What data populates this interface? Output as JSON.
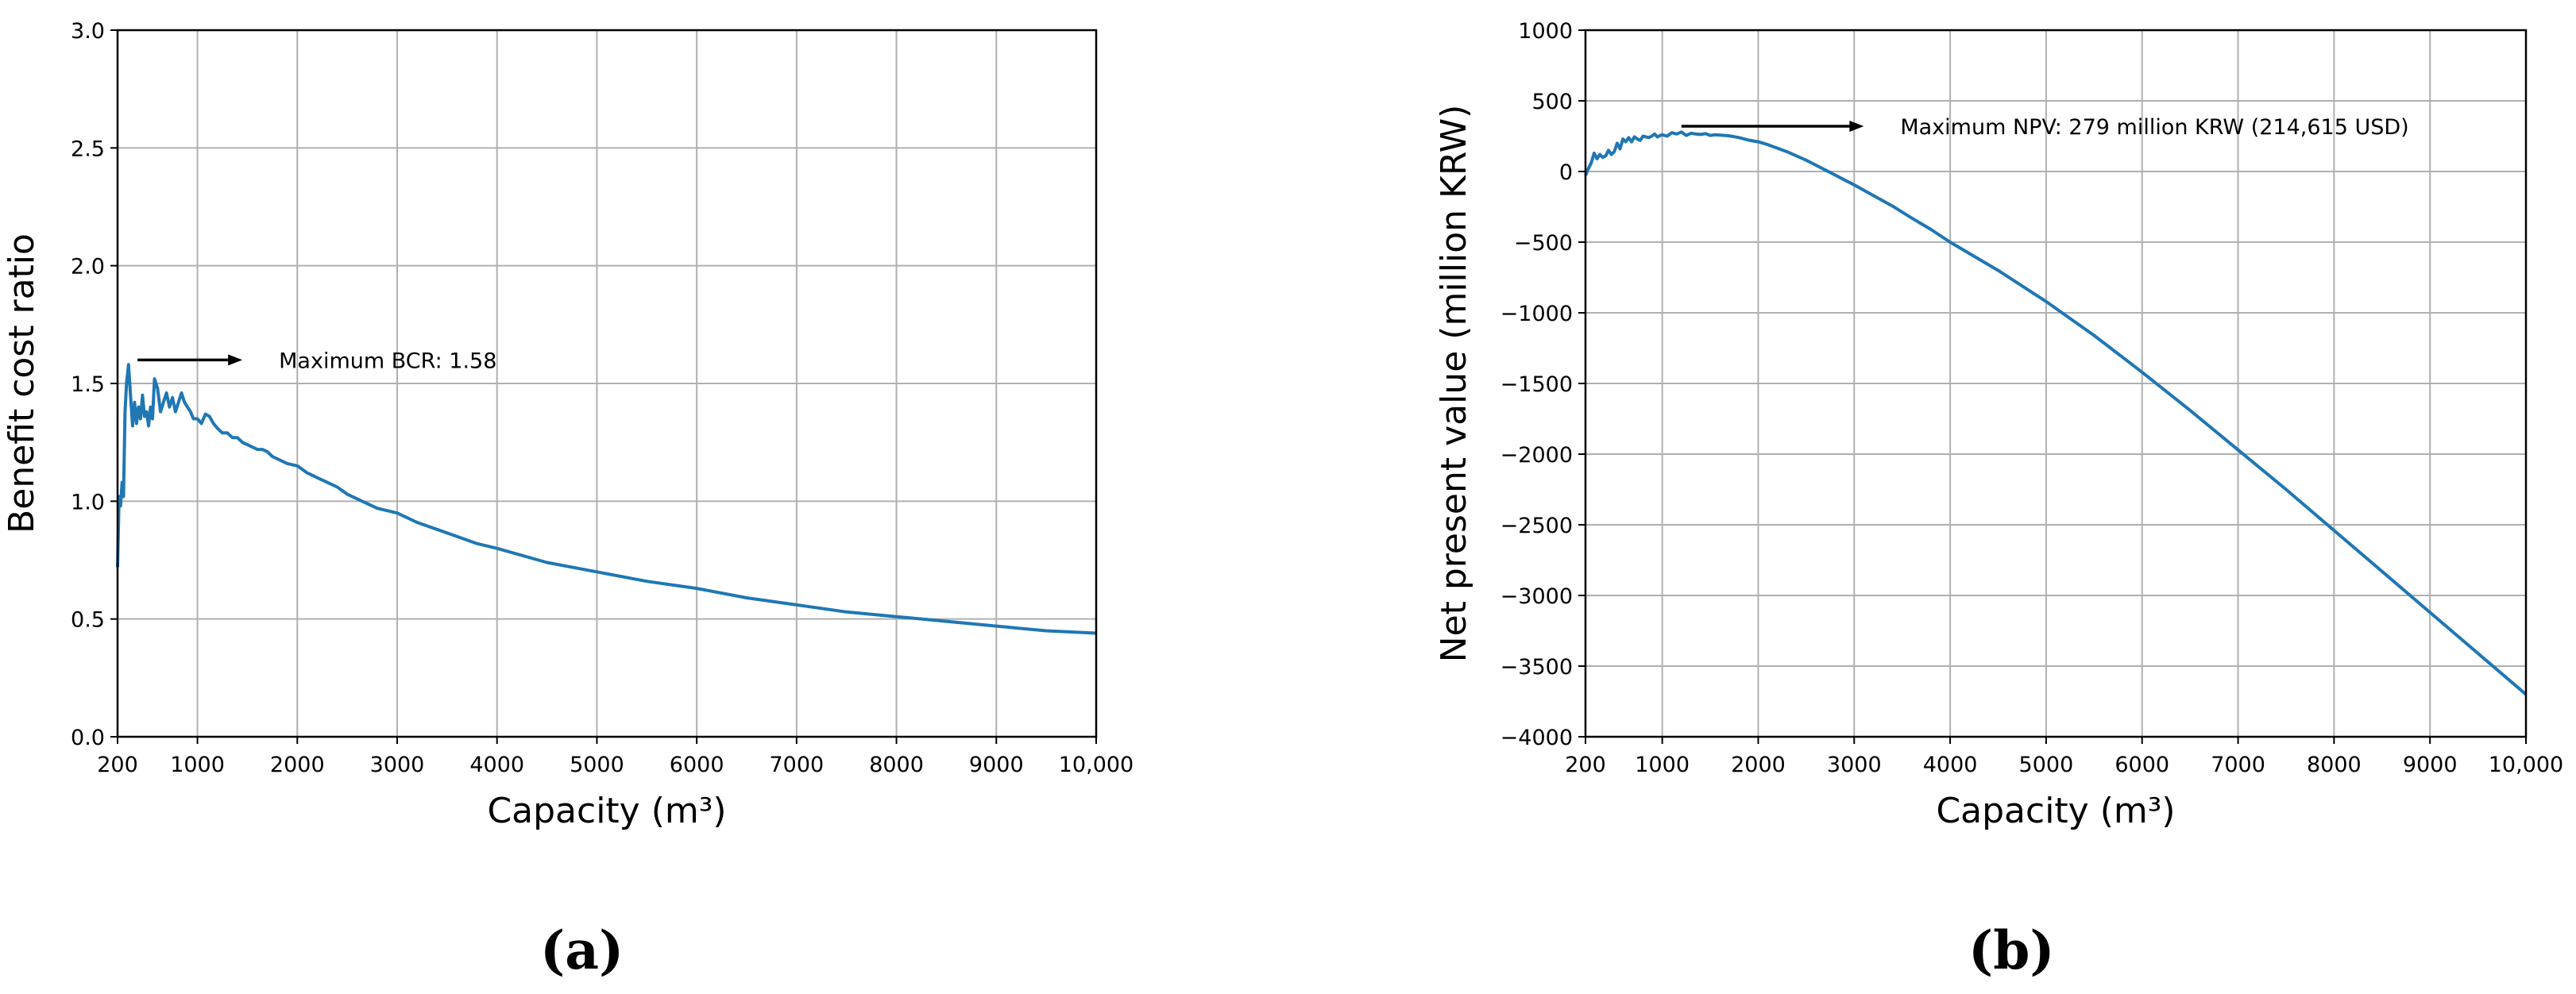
{
  "figure": {
    "panel_labels": [
      "(a)",
      "(b)"
    ]
  },
  "chart_data": [
    {
      "type": "line",
      "panel": "(a)",
      "xlabel": "Capacity (m³)",
      "ylabel": "Benefit cost ratio",
      "xlim": [
        200,
        10000
      ],
      "ylim": [
        0,
        3.0
      ],
      "x_ticks": [
        200,
        1000,
        2000,
        3000,
        4000,
        5000,
        6000,
        7000,
        8000,
        9000,
        10000
      ],
      "x_tick_labels": [
        "200",
        "1000",
        "2000",
        "3000",
        "4000",
        "5000",
        "6000",
        "7000",
        "8000",
        "9000",
        "10,000"
      ],
      "y_ticks": [
        0,
        0.5,
        1.0,
        1.5,
        2.0,
        2.5,
        3.0
      ],
      "y_tick_labels": [
        "0.0",
        "0.5",
        "1.0",
        "1.5",
        "2.0",
        "2.5",
        "3.0"
      ],
      "grid": true,
      "line_color": "#1f77b4",
      "annotation": {
        "text": "Maximum BCR: 1.58",
        "arrow_from": [
          400,
          1.6
        ],
        "arrow_to": [
          1450,
          1.6
        ]
      },
      "series": [
        {
          "x": [
            200,
            215,
            230,
            245,
            260,
            275,
            290,
            310,
            330,
            350,
            370,
            390,
            410,
            430,
            450,
            470,
            490,
            510,
            530,
            550,
            570,
            600,
            630,
            660,
            690,
            720,
            750,
            780,
            810,
            840,
            870,
            900,
            930,
            960,
            1000,
            1040,
            1080,
            1120,
            1160,
            1200,
            1250,
            1300,
            1350,
            1400,
            1450,
            1500,
            1550,
            1600,
            1650,
            1700,
            1750,
            1800,
            1900,
            2000,
            2100,
            2200,
            2300,
            2400,
            2500,
            2600,
            2700,
            2800,
            2900,
            3000,
            3200,
            3400,
            3600,
            3800,
            4000,
            4500,
            5000,
            5500,
            6000,
            6500,
            7000,
            7500,
            8000,
            8500,
            9000,
            9500,
            10000
          ],
          "y": [
            0.72,
            1.02,
            0.98,
            1.08,
            1.02,
            1.38,
            1.5,
            1.58,
            1.45,
            1.32,
            1.42,
            1.33,
            1.4,
            1.35,
            1.45,
            1.36,
            1.38,
            1.32,
            1.4,
            1.35,
            1.52,
            1.48,
            1.38,
            1.42,
            1.46,
            1.4,
            1.44,
            1.38,
            1.42,
            1.46,
            1.42,
            1.4,
            1.38,
            1.35,
            1.35,
            1.33,
            1.37,
            1.36,
            1.33,
            1.31,
            1.29,
            1.29,
            1.27,
            1.27,
            1.25,
            1.24,
            1.23,
            1.22,
            1.22,
            1.21,
            1.19,
            1.18,
            1.16,
            1.15,
            1.12,
            1.1,
            1.08,
            1.06,
            1.03,
            1.01,
            0.99,
            0.97,
            0.96,
            0.95,
            0.91,
            0.88,
            0.85,
            0.82,
            0.8,
            0.74,
            0.7,
            0.66,
            0.63,
            0.59,
            0.56,
            0.53,
            0.51,
            0.49,
            0.47,
            0.45,
            0.44
          ]
        }
      ]
    },
    {
      "type": "line",
      "panel": "(b)",
      "xlabel": "Capacity (m³)",
      "ylabel": "Net present value (million KRW)",
      "xlim": [
        200,
        10000
      ],
      "ylim": [
        -4000,
        1000
      ],
      "x_ticks": [
        200,
        1000,
        2000,
        3000,
        4000,
        5000,
        6000,
        7000,
        8000,
        9000,
        10000
      ],
      "x_tick_labels": [
        "200",
        "1000",
        "2000",
        "3000",
        "4000",
        "5000",
        "6000",
        "7000",
        "8000",
        "9000",
        "10,000"
      ],
      "y_ticks": [
        -4000,
        -3500,
        -3000,
        -2500,
        -2000,
        -1500,
        -1000,
        -500,
        0,
        500,
        1000
      ],
      "y_tick_labels": [
        "−4000",
        "−3500",
        "−3000",
        "−2500",
        "−2000",
        "−1500",
        "−1000",
        "−500",
        "0",
        "500",
        "1000"
      ],
      "grid": true,
      "line_color": "#1f77b4",
      "annotation": {
        "text": "Maximum NPV: 279 million KRW (214,615 USD)",
        "arrow_from": [
          1200,
          320
        ],
        "arrow_to": [
          3100,
          320
        ]
      },
      "series": [
        {
          "x": [
            200,
            230,
            260,
            290,
            320,
            350,
            380,
            410,
            440,
            470,
            500,
            530,
            560,
            590,
            620,
            650,
            680,
            710,
            740,
            770,
            800,
            830,
            860,
            890,
            920,
            950,
            980,
            1000,
            1050,
            1100,
            1150,
            1200,
            1250,
            1300,
            1350,
            1400,
            1450,
            1500,
            1550,
            1600,
            1700,
            1800,
            1900,
            2000,
            2100,
            2200,
            2300,
            2400,
            2500,
            2600,
            2700,
            2800,
            2900,
            3000,
            3200,
            3400,
            3600,
            3800,
            4000,
            4500,
            5000,
            5500,
            6000,
            6500,
            7000,
            7500,
            8000,
            8500,
            9000,
            9500,
            10000
          ],
          "y": [
            -30,
            20,
            60,
            130,
            90,
            120,
            100,
            110,
            150,
            120,
            140,
            200,
            160,
            230,
            210,
            240,
            210,
            245,
            230,
            220,
            250,
            245,
            240,
            250,
            265,
            245,
            255,
            260,
            250,
            275,
            265,
            279,
            255,
            270,
            265,
            262,
            268,
            255,
            260,
            258,
            252,
            240,
            222,
            210,
            190,
            165,
            140,
            110,
            80,
            45,
            10,
            -25,
            -60,
            -95,
            -170,
            -245,
            -330,
            -410,
            -500,
            -700,
            -920,
            -1160,
            -1420,
            -1690,
            -1970,
            -2250,
            -2540,
            -2830,
            -3120,
            -3410,
            -3700
          ]
        }
      ]
    }
  ]
}
